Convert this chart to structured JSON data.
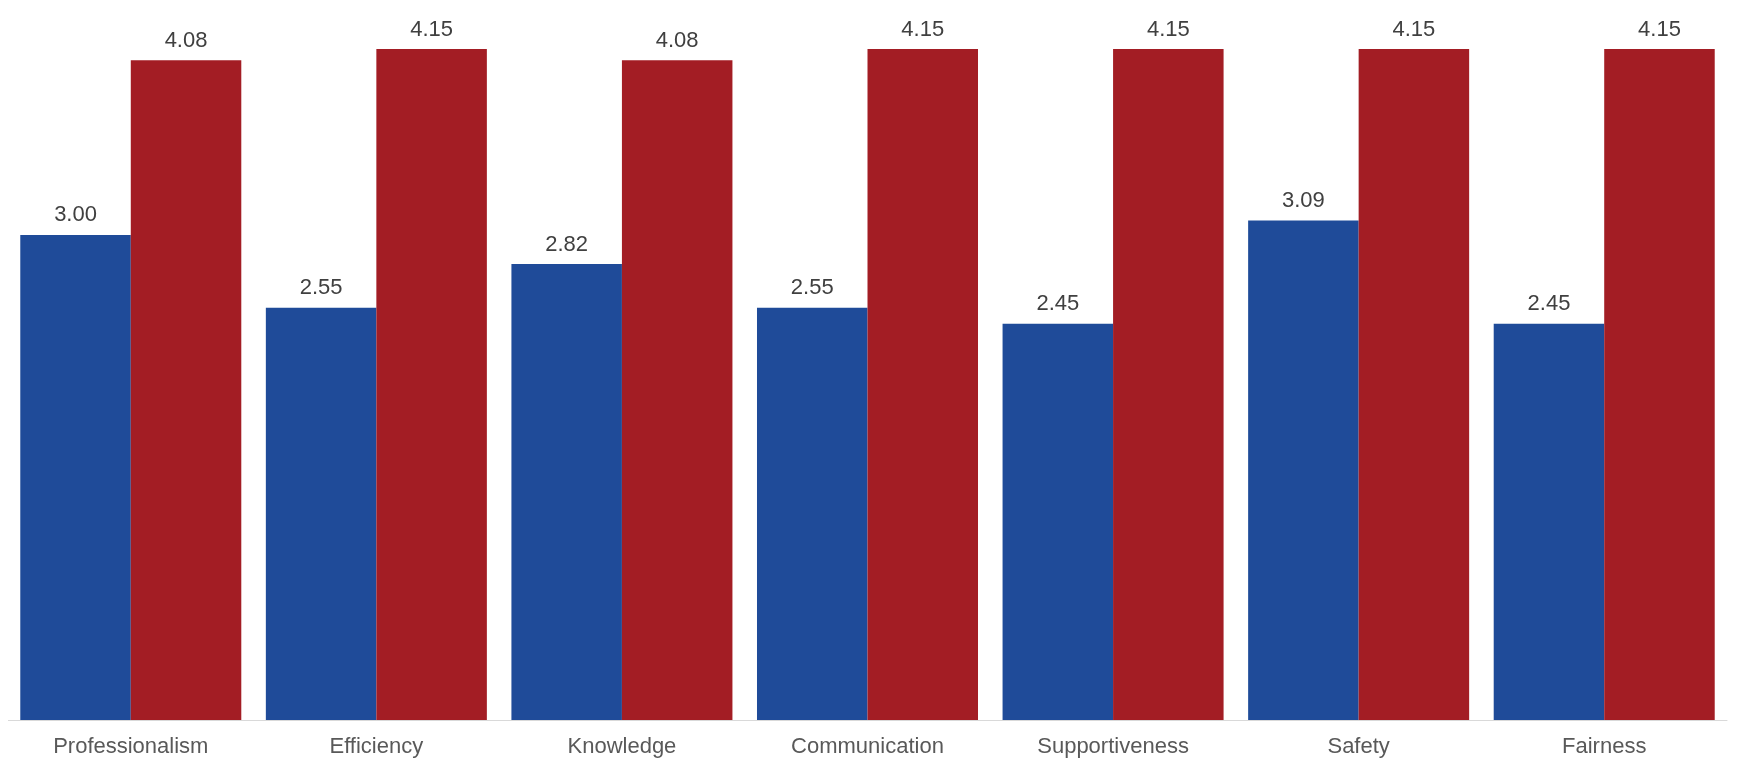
{
  "chart_data": {
    "type": "bar",
    "categories": [
      "Professionalism",
      "Efficiency",
      "Knowledge",
      "Communication",
      "Supportiveness",
      "Safety",
      "Fairness"
    ],
    "series": [
      {
        "color": "#1f4b99",
        "values": [
          3.0,
          2.55,
          2.82,
          2.55,
          2.45,
          3.09,
          2.45
        ],
        "value_labels": [
          "3.00",
          "2.55",
          "2.82",
          "2.55",
          "2.45",
          "3.09",
          "2.45"
        ]
      },
      {
        "color": "#a31d24",
        "values": [
          4.08,
          4.15,
          4.08,
          4.15,
          4.15,
          4.15,
          4.15
        ],
        "value_labels": [
          "4.08",
          "4.15",
          "4.08",
          "4.15",
          "4.15",
          "4.15",
          "4.15"
        ]
      }
    ]
  }
}
